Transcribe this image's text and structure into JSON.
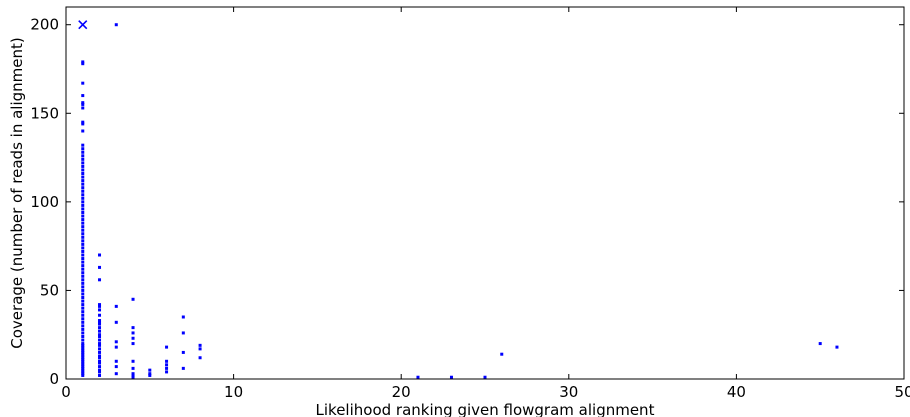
{
  "chart_data": {
    "type": "scatter",
    "title": "",
    "xlabel": "Likelihood ranking given flowgram alignment",
    "ylabel": "Coverage (number of reads in alignment)",
    "xlim": [
      0,
      50
    ],
    "ylim": [
      0,
      210
    ],
    "xticks": [
      0,
      10,
      20,
      30,
      40,
      50
    ],
    "yticks": [
      0,
      50,
      100,
      150,
      200
    ],
    "xtick_labels": [
      "0",
      "10",
      "20",
      "30",
      "40",
      "50"
    ],
    "ytick_labels": [
      "0",
      "50",
      "100",
      "150",
      "200"
    ],
    "grid": false,
    "legend": "none",
    "colors": {
      "points": "#0000ff",
      "axes": "#000000"
    },
    "series": [
      {
        "marker": "square",
        "points": [
          [
            1,
            2
          ],
          [
            1,
            3
          ],
          [
            1,
            4
          ],
          [
            1,
            5
          ],
          [
            1,
            6
          ],
          [
            1,
            7
          ],
          [
            1,
            8
          ],
          [
            1,
            9
          ],
          [
            1,
            10
          ],
          [
            1,
            11
          ],
          [
            1,
            12
          ],
          [
            1,
            13
          ],
          [
            1,
            14
          ],
          [
            1,
            15
          ],
          [
            1,
            16
          ],
          [
            1,
            17
          ],
          [
            1,
            18
          ],
          [
            1,
            19
          ],
          [
            1,
            20
          ],
          [
            1,
            22
          ],
          [
            1,
            24
          ],
          [
            1,
            26
          ],
          [
            1,
            28
          ],
          [
            1,
            30
          ],
          [
            1,
            32
          ],
          [
            1,
            34
          ],
          [
            1,
            36
          ],
          [
            1,
            38
          ],
          [
            1,
            40
          ],
          [
            1,
            42
          ],
          [
            1,
            44
          ],
          [
            1,
            46
          ],
          [
            1,
            48
          ],
          [
            1,
            50
          ],
          [
            1,
            52
          ],
          [
            1,
            54
          ],
          [
            1,
            56
          ],
          [
            1,
            58
          ],
          [
            1,
            60
          ],
          [
            1,
            62
          ],
          [
            1,
            64
          ],
          [
            1,
            66
          ],
          [
            1,
            68
          ],
          [
            1,
            70
          ],
          [
            1,
            72
          ],
          [
            1,
            74
          ],
          [
            1,
            76
          ],
          [
            1,
            78
          ],
          [
            1,
            80
          ],
          [
            1,
            82
          ],
          [
            1,
            84
          ],
          [
            1,
            86
          ],
          [
            1,
            88
          ],
          [
            1,
            90
          ],
          [
            1,
            92
          ],
          [
            1,
            94
          ],
          [
            1,
            96
          ],
          [
            1,
            98
          ],
          [
            1,
            100
          ],
          [
            1,
            102
          ],
          [
            1,
            104
          ],
          [
            1,
            106
          ],
          [
            1,
            108
          ],
          [
            1,
            110
          ],
          [
            1,
            112
          ],
          [
            1,
            114
          ],
          [
            1,
            116
          ],
          [
            1,
            118
          ],
          [
            1,
            120
          ],
          [
            1,
            122
          ],
          [
            1,
            124
          ],
          [
            1,
            126
          ],
          [
            1,
            128
          ],
          [
            1,
            130
          ],
          [
            1,
            132
          ],
          [
            1,
            140
          ],
          [
            1,
            144
          ],
          [
            1,
            145
          ],
          [
            1,
            153
          ],
          [
            1,
            155
          ],
          [
            1,
            156
          ],
          [
            1,
            160
          ],
          [
            1,
            167
          ],
          [
            1,
            178
          ],
          [
            1,
            179
          ],
          [
            2,
            2
          ],
          [
            2,
            4
          ],
          [
            2,
            5
          ],
          [
            2,
            7
          ],
          [
            2,
            9
          ],
          [
            2,
            10
          ],
          [
            2,
            12
          ],
          [
            2,
            13
          ],
          [
            2,
            15
          ],
          [
            2,
            17
          ],
          [
            2,
            19
          ],
          [
            2,
            20
          ],
          [
            2,
            22
          ],
          [
            2,
            24
          ],
          [
            2,
            25
          ],
          [
            2,
            27
          ],
          [
            2,
            29
          ],
          [
            2,
            31
          ],
          [
            2,
            32
          ],
          [
            2,
            33
          ],
          [
            2,
            36
          ],
          [
            2,
            39
          ],
          [
            2,
            41
          ],
          [
            2,
            42
          ],
          [
            2,
            56
          ],
          [
            2,
            63
          ],
          [
            2,
            70
          ],
          [
            3,
            3
          ],
          [
            3,
            7
          ],
          [
            3,
            10
          ],
          [
            3,
            18
          ],
          [
            3,
            21
          ],
          [
            3,
            32
          ],
          [
            3,
            41
          ],
          [
            3,
            200
          ],
          [
            4,
            1
          ],
          [
            4,
            2
          ],
          [
            4,
            3
          ],
          [
            4,
            6
          ],
          [
            4,
            10
          ],
          [
            4,
            20
          ],
          [
            4,
            23
          ],
          [
            4,
            26
          ],
          [
            4,
            29
          ],
          [
            4,
            45
          ],
          [
            5,
            2
          ],
          [
            5,
            3
          ],
          [
            5,
            5
          ],
          [
            6,
            4
          ],
          [
            6,
            6
          ],
          [
            6,
            8
          ],
          [
            6,
            10
          ],
          [
            6,
            18
          ],
          [
            7,
            6
          ],
          [
            7,
            15
          ],
          [
            7,
            26
          ],
          [
            7,
            35
          ],
          [
            8,
            12
          ],
          [
            8,
            17
          ],
          [
            8,
            19
          ],
          [
            21,
            1
          ],
          [
            23,
            1
          ],
          [
            25,
            1
          ],
          [
            26,
            14
          ],
          [
            45,
            20
          ],
          [
            46,
            18
          ]
        ]
      },
      {
        "marker": "x",
        "points": [
          [
            1,
            200
          ]
        ]
      }
    ]
  }
}
